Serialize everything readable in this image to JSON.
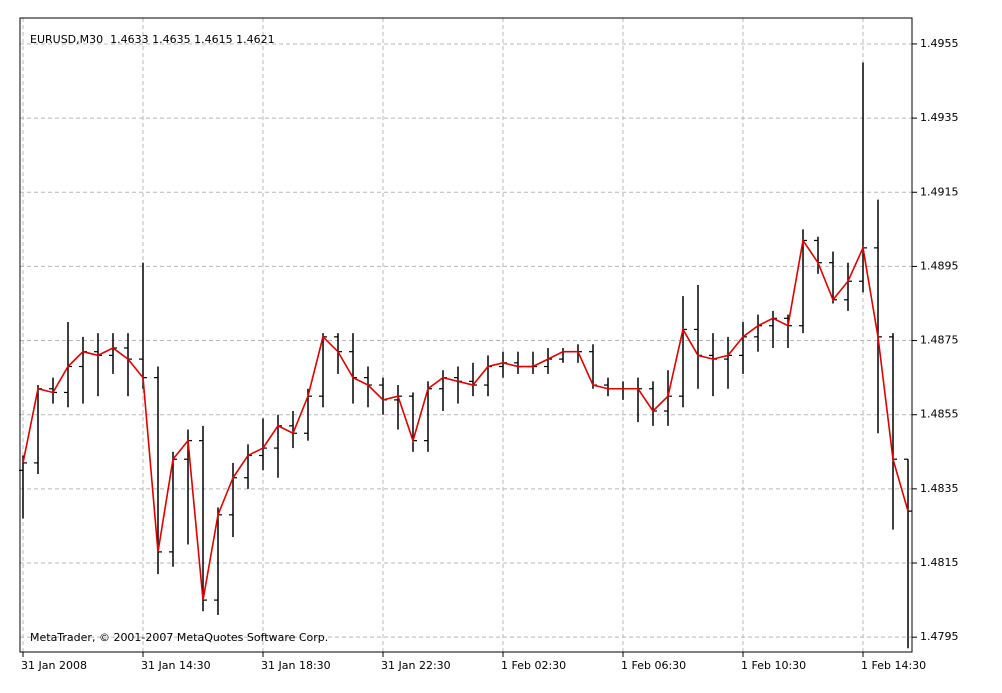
{
  "chart_data": {
    "type": "ohlc",
    "title": "EURUSD,M30  1.4633 1.4635 1.4615 1.4621",
    "footer": "MetaTrader, © 2001-2007 MetaQuotes Software Corp.",
    "categories": [
      "31 Jan 2008",
      null,
      null,
      null,
      null,
      null,
      null,
      null,
      "31 Jan 14:30",
      null,
      null,
      null,
      null,
      null,
      null,
      null,
      "31 Jan 18:30",
      null,
      null,
      null,
      null,
      null,
      null,
      null,
      "31 Jan 22:30",
      null,
      null,
      null,
      null,
      null,
      null,
      null,
      "1 Feb 02:30",
      null,
      null,
      null,
      null,
      null,
      null,
      null,
      "1 Feb 06:30",
      null,
      null,
      null,
      null,
      null,
      null,
      null,
      "1 Feb 10:30",
      null,
      null,
      null,
      null,
      null,
      null,
      null,
      "1 Feb 14:30",
      null,
      null,
      null
    ],
    "open": [
      1.484,
      1.4842,
      1.4862,
      1.4861,
      1.4868,
      1.4872,
      1.4871,
      1.4873,
      1.487,
      1.4865,
      1.4818,
      1.4843,
      1.4848,
      1.4805,
      1.4828,
      1.4838,
      1.4844,
      1.4846,
      1.4852,
      1.485,
      1.486,
      1.4876,
      1.4872,
      1.4865,
      1.4863,
      1.4859,
      1.486,
      1.4848,
      1.4862,
      1.4865,
      1.4864,
      1.4863,
      1.4868,
      1.4869,
      1.4868,
      1.4868,
      1.487,
      1.4872,
      1.4872,
      1.4863,
      1.4862,
      1.4862,
      1.4862,
      1.4856,
      1.486,
      1.4878,
      1.4871,
      1.487,
      1.4871,
      1.4876,
      1.4879,
      1.4881,
      1.4879,
      1.4902,
      1.4896,
      1.4886,
      1.4891,
      1.49,
      1.4876,
      1.4843
    ],
    "high": [
      1.4844,
      1.4863,
      1.4865,
      1.488,
      1.4876,
      1.4877,
      1.4877,
      1.4877,
      1.4896,
      1.4868,
      1.4845,
      1.4851,
      1.4852,
      1.483,
      1.4842,
      1.4847,
      1.4854,
      1.4855,
      1.4856,
      1.4862,
      1.4877,
      1.4877,
      1.4877,
      1.4868,
      1.4865,
      1.4863,
      1.4861,
      1.4864,
      1.4867,
      1.4868,
      1.4869,
      1.4871,
      1.4872,
      1.4872,
      1.4872,
      1.4873,
      1.4873,
      1.4874,
      1.4874,
      1.4865,
      1.4864,
      1.4865,
      1.4864,
      1.4867,
      1.4887,
      1.489,
      1.4877,
      1.4876,
      1.488,
      1.4882,
      1.4883,
      1.4882,
      1.4905,
      1.4903,
      1.4899,
      1.4896,
      1.495,
      1.4913,
      1.4877,
      1.4843
    ],
    "low": [
      1.4827,
      1.4839,
      1.4858,
      1.4857,
      1.4858,
      1.486,
      1.4866,
      1.486,
      1.4862,
      1.4812,
      1.4814,
      1.482,
      1.4802,
      1.4801,
      1.4822,
      1.4835,
      1.484,
      1.4838,
      1.4846,
      1.4848,
      1.4857,
      1.4866,
      1.4858,
      1.4857,
      1.4855,
      1.4851,
      1.4845,
      1.4845,
      1.4856,
      1.4858,
      1.486,
      1.486,
      1.4865,
      1.4866,
      1.4866,
      1.4866,
      1.4869,
      1.4869,
      1.4862,
      1.486,
      1.4859,
      1.4853,
      1.4852,
      1.4852,
      1.4857,
      1.4862,
      1.486,
      1.4862,
      1.4866,
      1.4872,
      1.4873,
      1.4873,
      1.4877,
      1.4893,
      1.4885,
      1.4883,
      1.4888,
      1.485,
      1.4824,
      1.4792
    ],
    "close": [
      1.4842,
      1.4862,
      1.4861,
      1.4868,
      1.4872,
      1.4871,
      1.4873,
      1.487,
      1.4865,
      1.4818,
      1.4843,
      1.4848,
      1.4805,
      1.4828,
      1.4838,
      1.4844,
      1.4846,
      1.4852,
      1.485,
      1.486,
      1.4876,
      1.4872,
      1.4865,
      1.4863,
      1.4859,
      1.486,
      1.4848,
      1.4862,
      1.4865,
      1.4864,
      1.4863,
      1.4868,
      1.4869,
      1.4868,
      1.4868,
      1.487,
      1.4872,
      1.4872,
      1.4863,
      1.4862,
      1.4862,
      1.4862,
      1.4856,
      1.486,
      1.4878,
      1.4871,
      1.487,
      1.4871,
      1.4876,
      1.4879,
      1.4881,
      1.4879,
      1.4902,
      1.4896,
      1.4886,
      1.4891,
      1.49,
      1.4876,
      1.4843,
      1.4829
    ],
    "bar_color": "#000000",
    "line_color": "#dd0000",
    "grid_color": "#b8b8b8",
    "ylim": [
      1.4791,
      1.4962
    ],
    "yticks": [
      1.4795,
      1.4815,
      1.4835,
      1.4855,
      1.4875,
      1.4895,
      1.4915,
      1.4935,
      1.4955
    ],
    "grid": true
  }
}
